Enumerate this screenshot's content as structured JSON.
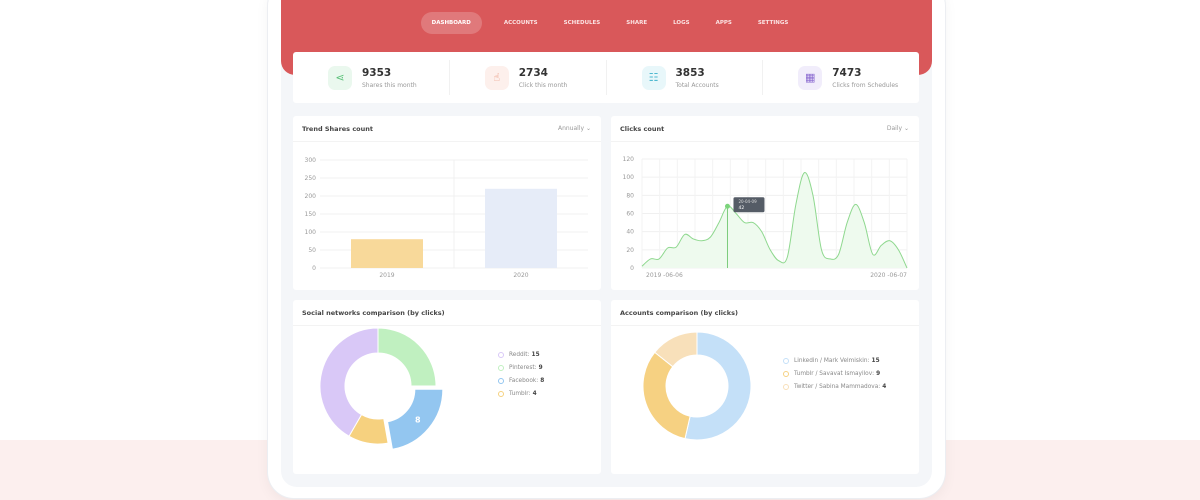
{
  "nav": {
    "items": [
      "DASHBOARD",
      "ACCOUNTS",
      "SCHEDULES",
      "SHARE",
      "LOGS",
      "APPS",
      "SETTINGS"
    ],
    "active": "DASHBOARD"
  },
  "stats": [
    {
      "value": "9353",
      "label": "Shares this month",
      "icon": "share-icon",
      "color": "#5cc27a",
      "bg": "#eaf8ee"
    },
    {
      "value": "2734",
      "label": "Click this month",
      "icon": "pointer-icon",
      "color": "#e8937a",
      "bg": "#fdf0ec"
    },
    {
      "value": "3853",
      "label": "Total Accounts",
      "icon": "users-icon",
      "color": "#4fb9d0",
      "bg": "#e8f7fa"
    },
    {
      "value": "7473",
      "label": "Clicks from Schedules",
      "icon": "calendar-icon",
      "color": "#8a6ad0",
      "bg": "#f1edfb"
    }
  ],
  "trend": {
    "title": "Trend Shares count",
    "dropdown": "Annually"
  },
  "clicks": {
    "title": "Clicks count",
    "dropdown": "Daily",
    "tooltip": {
      "date": "20-04-09",
      "value": "42"
    }
  },
  "social": {
    "title": "Social networks comparison (by clicks)",
    "center_label": "8"
  },
  "accounts": {
    "title": "Accounts comparison (by clicks)"
  },
  "chart_data": [
    {
      "type": "bar",
      "categories": [
        "2019",
        "2020"
      ],
      "values": [
        80,
        220
      ],
      "ylim": [
        0,
        300
      ],
      "yticks": [
        0,
        50,
        100,
        150,
        200,
        250,
        300
      ],
      "colors": [
        "#f8d99a",
        "#e6ecf8"
      ],
      "grid": true
    },
    {
      "type": "area",
      "x_start": "2019 -06-06",
      "x_end": "2020 -06-07",
      "ylim": [
        0,
        120
      ],
      "yticks": [
        0,
        20,
        40,
        60,
        80,
        100,
        120
      ],
      "values": [
        2,
        10,
        10,
        22,
        23,
        37,
        32,
        30,
        34,
        50,
        68,
        60,
        50,
        50,
        40,
        20,
        8,
        12,
        70,
        105,
        80,
        20,
        10,
        15,
        50,
        70,
        50,
        15,
        25,
        30,
        20,
        0
      ],
      "color": "#8fd88f",
      "grid": true
    },
    {
      "type": "pie",
      "labels": [
        "Reddit",
        "Pinterest",
        "Facebook",
        "Tumblr"
      ],
      "values": [
        15,
        9,
        8,
        4
      ],
      "colors": [
        "#d9c8f7",
        "#c0f0c0",
        "#93c6f0",
        "#f6d17f"
      ]
    },
    {
      "type": "pie",
      "labels": [
        "Linkedin / Mark Velmiskin",
        "Tumblr / Savavat Ismayilov",
        "Twitter / Sabina Mammadova"
      ],
      "values": [
        15,
        9,
        4
      ],
      "colors": [
        "#c4e0f8",
        "#f6d182",
        "#f8e0ba"
      ]
    }
  ]
}
